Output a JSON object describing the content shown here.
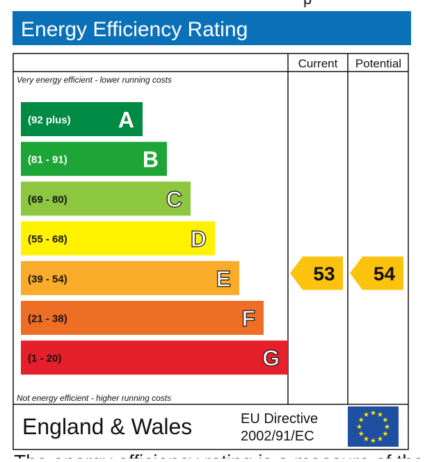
{
  "header": {
    "title": "Energy Efficiency Rating"
  },
  "columns": {
    "current": "Current",
    "potential": "Potential"
  },
  "notes": {
    "top": "Very energy efficient - lower running costs",
    "bottom": "Not energy efficient - higher running costs"
  },
  "footer": {
    "region": "England & Wales",
    "directive_line1": "EU Directive",
    "directive_line2": "2002/91/EC"
  },
  "colors": {
    "header_bg": "#0a71b8",
    "arrow": "#fcc30e",
    "eu_flag": "#1f4fa0",
    "eu_stars": "#ffe800"
  },
  "chart_data": {
    "type": "bar",
    "categories": [
      "A",
      "B",
      "C",
      "D",
      "E",
      "F",
      "G"
    ],
    "ranges": [
      "(92 plus)",
      "(81 - 91)",
      "(69 - 80)",
      "(55 - 68)",
      "(39 - 54)",
      "(21 - 38)",
      "(1 - 20)"
    ],
    "band_colors": [
      "#008a43",
      "#1ea537",
      "#8dc63f",
      "#fff200",
      "#f9ac2a",
      "#ef6e26",
      "#e6202b"
    ],
    "series": [
      {
        "name": "Current",
        "value": 53,
        "band": "E"
      },
      {
        "name": "Potential",
        "value": 54,
        "band": "E"
      }
    ]
  },
  "partial_text": {
    "top": "p",
    "bottom": "The energy efficiency rating is a measure of the"
  }
}
